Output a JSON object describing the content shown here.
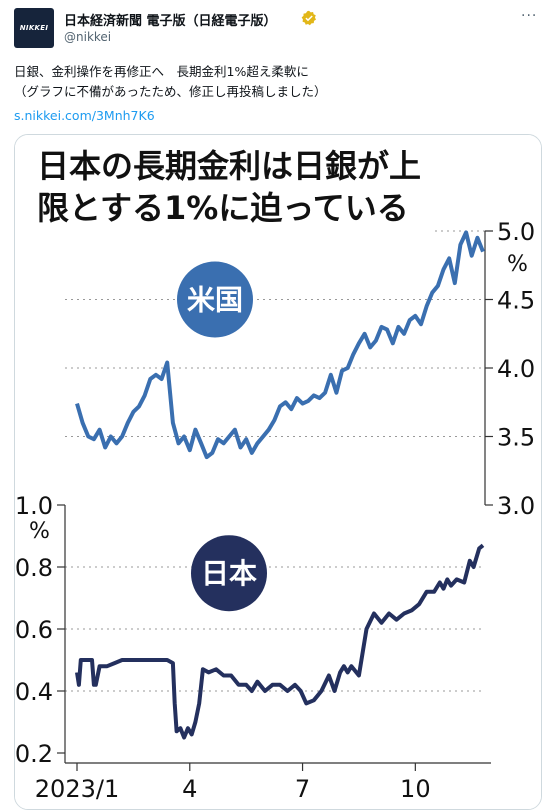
{
  "account": {
    "avatar_text": "NIKKEI",
    "display_name": "日本経済新聞 電子版（日経電子版）",
    "handle": "@nikkei",
    "more_label": "···",
    "verified_color": "#e2b719"
  },
  "tweet": {
    "text": "日銀、金利操作を再修正へ　長期金利1%超え柔軟に\n（グラフに不備があったため、修正し再投稿しました）",
    "link": "s.nikkei.com/3Mnh7K6"
  },
  "chart_data": [
    {
      "type": "line",
      "title": "日本の長期金利は日銀が上限とする1%に迫っている",
      "badge": "米国",
      "ylim": [
        3.0,
        5.0
      ],
      "yticks": [
        "5.0",
        "4.5",
        "4.0",
        "3.5",
        "3.0"
      ],
      "unit": "%",
      "color": "#3a6fb0",
      "x": [
        0.0,
        0.15,
        0.3,
        0.45,
        0.6,
        0.75,
        0.9,
        1.05,
        1.2,
        1.35,
        1.5,
        1.65,
        1.8,
        1.95,
        2.1,
        2.25,
        2.4,
        2.55,
        2.7,
        2.85,
        3.0,
        3.15,
        3.3,
        3.45,
        3.6,
        3.75,
        3.9,
        4.05,
        4.2,
        4.35,
        4.5,
        4.65,
        4.8,
        4.95,
        5.1,
        5.25,
        5.4,
        5.55,
        5.7,
        5.85,
        6.0,
        6.15,
        6.3,
        6.45,
        6.6,
        6.75,
        6.9,
        7.05,
        7.2,
        7.35,
        7.5,
        7.65,
        7.8,
        7.95,
        8.1,
        8.25,
        8.4,
        8.55,
        8.7,
        8.85,
        9.0,
        9.15,
        9.3,
        9.45,
        9.6,
        9.75,
        9.9,
        10.05,
        10.2,
        10.35,
        10.5,
        10.65,
        10.8
      ],
      "values": [
        3.74,
        3.6,
        3.5,
        3.48,
        3.55,
        3.42,
        3.5,
        3.45,
        3.5,
        3.6,
        3.68,
        3.72,
        3.8,
        3.92,
        3.95,
        3.92,
        4.04,
        3.6,
        3.45,
        3.5,
        3.4,
        3.55,
        3.45,
        3.35,
        3.38,
        3.48,
        3.45,
        3.5,
        3.55,
        3.42,
        3.48,
        3.38,
        3.45,
        3.5,
        3.55,
        3.62,
        3.72,
        3.75,
        3.7,
        3.78,
        3.74,
        3.76,
        3.8,
        3.78,
        3.82,
        3.95,
        3.82,
        3.98,
        4.0,
        4.1,
        4.18,
        4.25,
        4.15,
        4.2,
        4.3,
        4.28,
        4.18,
        4.3,
        4.25,
        4.35,
        4.38,
        4.32,
        4.45,
        4.55,
        4.6,
        4.72,
        4.8,
        4.62,
        4.9,
        4.99,
        4.82,
        4.95,
        4.85
      ]
    },
    {
      "type": "line",
      "badge": "日本",
      "ylim": [
        0.2,
        1.0
      ],
      "yticks": [
        "1.0",
        "0.8",
        "0.6",
        "0.4",
        "0.2"
      ],
      "unit": "%",
      "color": "#24305e",
      "categories": [
        "2023/1",
        "4",
        "7",
        "10"
      ],
      "category_x": [
        0,
        3,
        6,
        9
      ],
      "x": [
        0.0,
        0.05,
        0.1,
        0.2,
        0.3,
        0.4,
        0.45,
        0.5,
        0.6,
        0.8,
        1.0,
        1.2,
        1.4,
        1.6,
        1.8,
        2.0,
        2.2,
        2.4,
        2.55,
        2.6,
        2.65,
        2.75,
        2.85,
        2.95,
        3.05,
        3.15,
        3.25,
        3.35,
        3.5,
        3.7,
        3.9,
        4.1,
        4.3,
        4.5,
        4.65,
        4.8,
        5.0,
        5.2,
        5.4,
        5.6,
        5.8,
        5.95,
        6.1,
        6.3,
        6.5,
        6.7,
        6.85,
        7.0,
        7.1,
        7.2,
        7.3,
        7.5,
        7.7,
        7.9,
        8.1,
        8.3,
        8.5,
        8.7,
        8.9,
        9.1,
        9.3,
        9.5,
        9.65,
        9.75,
        9.85,
        9.95,
        10.1,
        10.3,
        10.45,
        10.55,
        10.7,
        10.8
      ],
      "values": [
        0.46,
        0.42,
        0.5,
        0.5,
        0.5,
        0.5,
        0.42,
        0.42,
        0.48,
        0.48,
        0.49,
        0.5,
        0.5,
        0.5,
        0.5,
        0.5,
        0.5,
        0.5,
        0.49,
        0.36,
        0.27,
        0.28,
        0.25,
        0.28,
        0.26,
        0.3,
        0.36,
        0.47,
        0.46,
        0.47,
        0.45,
        0.45,
        0.42,
        0.42,
        0.4,
        0.43,
        0.4,
        0.42,
        0.42,
        0.4,
        0.42,
        0.4,
        0.36,
        0.37,
        0.4,
        0.45,
        0.4,
        0.46,
        0.48,
        0.46,
        0.48,
        0.45,
        0.6,
        0.65,
        0.62,
        0.65,
        0.63,
        0.65,
        0.66,
        0.68,
        0.72,
        0.72,
        0.75,
        0.73,
        0.76,
        0.74,
        0.76,
        0.75,
        0.82,
        0.8,
        0.86,
        0.87
      ]
    }
  ]
}
